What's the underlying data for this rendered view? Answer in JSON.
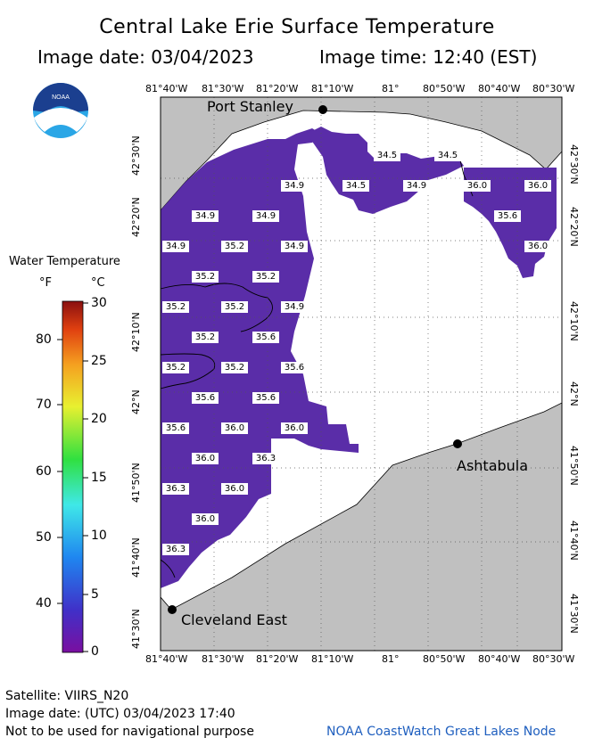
{
  "title": "Central Lake Erie Surface Temperature",
  "image_date_label": "Image date: 03/04/2023",
  "image_time_label": "Image time: 12:40 (EST)",
  "logo_text": "NOAA",
  "longitude_ticks": [
    "81°40'W",
    "81°30'W",
    "81°20'W",
    "81°10'W",
    "81°",
    "80°50'W",
    "80°40'W",
    "80°30'W"
  ],
  "latitude_ticks": [
    "42°30'N",
    "42°20'N",
    "42°10'N",
    "42°N",
    "41°50'N",
    "41°40'N",
    "41°30'N"
  ],
  "legend": {
    "title": "Water Temperature",
    "unit_f": "°F",
    "unit_c": "°C",
    "f_ticks": [
      "80",
      "70",
      "60",
      "50",
      "40"
    ],
    "c_ticks": [
      "30",
      "25",
      "20",
      "15",
      "10",
      "5",
      "0"
    ]
  },
  "cities": {
    "port_stanley": "Port Stanley",
    "ashtabula": "Ashtabula",
    "cleveland": "Cleveland East"
  },
  "temperature_labels": [
    {
      "text": "34.5"
    },
    {
      "text": "34.5"
    },
    {
      "text": "34.9"
    },
    {
      "text": "34.5"
    },
    {
      "text": "34.9"
    },
    {
      "text": "36.0"
    },
    {
      "text": "36.0"
    },
    {
      "text": "34.9"
    },
    {
      "text": "34.9"
    },
    {
      "text": "35.6"
    },
    {
      "text": "34.9"
    },
    {
      "text": "35.2"
    },
    {
      "text": "34.9"
    },
    {
      "text": "36.0"
    },
    {
      "text": "35.2"
    },
    {
      "text": "35.2"
    },
    {
      "text": "35.2"
    },
    {
      "text": "35.2"
    },
    {
      "text": "34.9"
    },
    {
      "text": "35.2"
    },
    {
      "text": "35.6"
    },
    {
      "text": "35.2"
    },
    {
      "text": "35.2"
    },
    {
      "text": "35.6"
    },
    {
      "text": "35.6"
    },
    {
      "text": "35.6"
    },
    {
      "text": "35.6"
    },
    {
      "text": "36.0"
    },
    {
      "text": "36.0"
    },
    {
      "text": "36.0"
    },
    {
      "text": "36.3"
    },
    {
      "text": "36.3"
    },
    {
      "text": "36.0"
    },
    {
      "text": "36.0"
    },
    {
      "text": "36.3"
    }
  ],
  "footer": {
    "satellite": "Satellite: VIIRS_N20",
    "utc_date": "Image date: (UTC) 03/04/2023  17:40",
    "disclaimer": "Not to be used for navigational purpose",
    "credit": "NOAA CoastWatch Great Lakes Node"
  },
  "colors": {
    "land": "#c0c0c0",
    "water_temp": "#5a2da8",
    "no_data": "#ffffff",
    "credit": "#1f5fbf"
  }
}
